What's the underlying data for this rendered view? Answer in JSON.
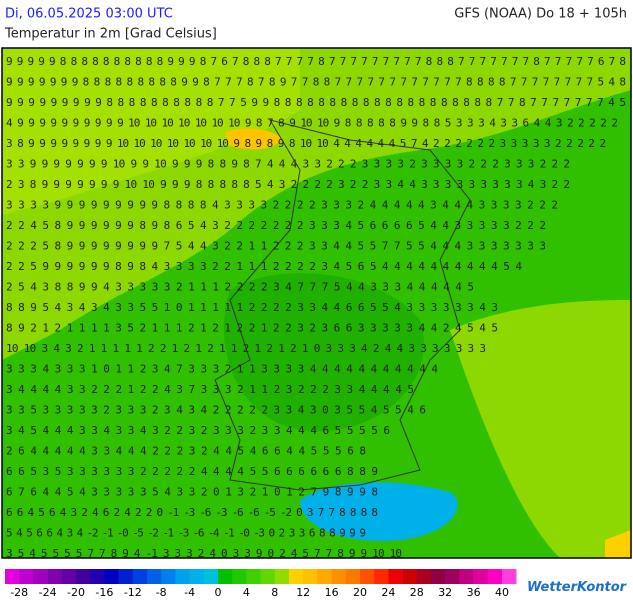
{
  "header": {
    "datetime": "Di, 06.05.2025 03:00 UTC",
    "model": "GFS (NOAA) Do 18 + 105h",
    "title": "Temperatur in 2m [Grad Celsius]"
  },
  "map": {
    "rows": [
      "9 9 9 9 9 8 8 8 8 8 8 8 8 8 8 9 9 9 8 7 6 7 8 8 8 7 7 7 7 8 7 7 7 7 7 7 7 7 7 8 8 8 7 7 7 7 7 7 7 8 7 7 7 7 7 6 7 8",
      "9 9 9 9 9 9 9 8 8 8 8 8 8 8 8 8 9 9 8 7 7 7 8 7 8 9 7 7 8 8 7 7 7 7 7 7 7 7 7 7 7 7 8 8 8 8 7 7 7 7 7 7 7 7 5 4 8",
      "9 9 9 9 9 9 9 9 9 8 8 8 8 8 8 8 8 8 8 7 7 5 9 9 8 8 8 8 8 8 8 8 8 8 8 8 8 8 8 8 8 8 8 8 7 7 8 7 7 7 7 7 7 7 4 5",
      "4 9 9 9 9 9 9 9 9 9 9 10 10 10 10 10 10 10 9 8 7 8 9 10 10 9 8 8 8 8 8 9 9 8 8 5 3 3 3 4 3 3 6 4 4 3 2 2 2 2 2",
      "3 8 9 9 9 9 9 9 9 9 10 10 10 10 10 10 10 9 8 9 8 9 8 10 10 4 4 4 4 4 4 5 7 4 2 2 2 2 2 2 3 3 3 3 3 2 2 2 2 2",
      "3 3 9 9 9 9 9 9 9 10 9 9 10 9 9 9 8 8 9 8 7 4 4 4 3 3 2 2 2 3 3 3 3 2 3 3 3 3 2 2 2 3 3 3 2 2 2",
      "2 3 8 9 9 9 9 9 9 9 10 10 9 9 9 8 8 8 8 8 5 4 3 2 2 2 2 3 2 2 3 3 4 4 3 3 3 3 3 3 3 3 3 4 3 2 2",
      "3 3 3 3 9 9 9 9 9 9 9 9 9 8 8 8 8 4 3 3 3 3 2 2 2 2 3 3 3 2 4 4 4 4 4 3 4 4 4 3 3 3 3 2 2 2",
      "2 2 4 5 8 9 9 9 9 9 9 8 9 8 6 5 4 3 2 2 2 2 2 2 2 3 3 3 4 5 6 6 6 6 5 4 4 3 3 3 3 3 2 2 2",
      "2 2 2 5 8 9 9 9 9 9 9 9 9 7 5 4 4 3 2 2 1 1 2 2 2 3 3 4 4 5 5 7 7 5 5 4 4 4 3 3 3 3 3 3 3",
      "2 2 5 9 9 9 9 9 9 8 9 8 4 3 3 3 3 2 2 1 1 1 2 2 2 2 3 4 5 6 5 4 4 4 4 4 4 4 4 4 4 5 4",
      "2 5 4 3 8 8 9 9 4 3 3 3 3 3 2 1 1 1 2 2 2 2 3 4 7 7 7 5 4 4 3 3 3 4 4 4 4 4 5",
      "8 8 9 5 4 3 4 3 4 3 3 5 5 1 0 1 1 1 1 1 2 2 2 2 3 3 4 4 6 6 5 5 4 3 3 3 3 3 3 4 3",
      "8 9 2 1 2 1 1 1 1 3 5 2 1 1 1 2 1 2 1 2 2 1 2 2 3 2 3 6 6 3 3 3 3 3 4 4 2 4 5 4 5",
      "10 10 3 4 3 2 1 1 1 1 1 2 2 1 2 1 2 1 1 2 1 2 1 2 1 0 3 3 3 4 2 4 4 3 3 3 3 3 3 3",
      "3 3 3 4 3 3 3 1 0 1 1 2 3 4 7 3 3 3 2 1 1 3 3 3 3 4 4 4 4 4 4 4 4 4 4 4",
      "3 4 4 4 4 3 3 2 2 2 1 2 2 4 3 7 3 3 3 2 1 1 2 3 2 2 2 3 3 4 4 4 4 5",
      "3 3 5 3 3 3 3 3 2 3 3 3 2 3 4 3 4 2 2 2 2 2 3 3 4 3 0 3 5 5 4 5 5 4 6",
      "3 4 5 4 4 4 3 3 4 3 3 4 3 2 2 3 2 3 3 3 2 3 3 4 4 4 6 5 5 5 5 6",
      "2 6 4 4 4 4 4 3 3 4 4 4 2 2 2 3 2 4 4 5 4 6 6 4 4 5 5 5 6 8",
      "6 6 5 3 5 3 3 3 3 3 3 2 2 2 2 2 4 4 4 4 5 5 6 6 6 6 6 6 8 8 9",
      "6 7 6 4 4 5 4 3 3 3 3 3 5 4 3 3 2 0 1 3 2 1 0 1 2 7 9 8 9 9 8",
      "6 6 4 5 6 4 3 2 4 6 2 4 2 2 0 -1 -3 -6 -3 -6 -6 -5 -2 0 3 7 7 8 8 8 8",
      "5 4 5 6 6 4 3 4 -2 -1 -0 -5 -2 -1 -3 -6 -4 -1 -0 -3 0 2 3 3 6 8 8 9 9 9",
      "3 5 4 5 5 5 5 7 7 8 9 4 -1 3 3 3 2 4 0 3 3 9 0 2 4 5 7 7 8 9 9 10 10"
    ]
  },
  "legend": {
    "ticks": [
      -28,
      -24,
      -20,
      -16,
      -12,
      -8,
      -4,
      0,
      4,
      8,
      12,
      16,
      20,
      24,
      28,
      32,
      36,
      40
    ],
    "colors": [
      "#e000e0",
      "#c000d0",
      "#a000c0",
      "#8000b0",
      "#6000a8",
      "#4000a0",
      "#2000b0",
      "#0000c0",
      "#0020d0",
      "#0040e0",
      "#0060e8",
      "#0080f0",
      "#00a0f0",
      "#00b0e8",
      "#00c0e0",
      "#00c000",
      "#20c800",
      "#40d000",
      "#60d800",
      "#90dc00",
      "#ffd000",
      "#ffc000",
      "#ffa800",
      "#ff9000",
      "#ff7800",
      "#ff5000",
      "#ff2800",
      "#ee0000",
      "#cc0000",
      "#aa0020",
      "#900040",
      "#a00060",
      "#c00080",
      "#e000a0",
      "#ff00c0",
      "#ff40e0"
    ],
    "brand": "WetterKontor"
  }
}
